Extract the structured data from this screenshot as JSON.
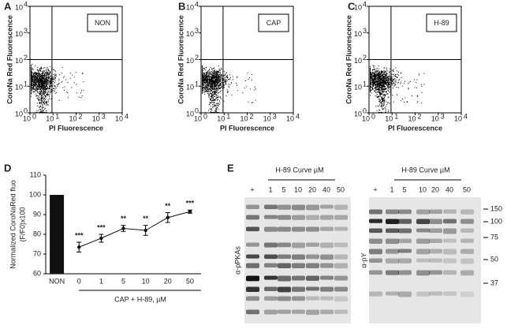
{
  "chart_data": [
    {
      "type": "scatter",
      "letter": "A",
      "label": "NON",
      "x_label": "PI Fluorescence",
      "y_label": "CoroNa Red Fluorescence",
      "log_x": true,
      "log_y": true,
      "xlim": [
        1,
        10000
      ],
      "ylim": [
        1,
        10000
      ],
      "xticks": [
        {
          "value": 1,
          "label": "10",
          "exponent": "0"
        },
        {
          "value": 10,
          "label": "10",
          "exponent": "1"
        },
        {
          "value": 100,
          "label": "10",
          "exponent": "2"
        },
        {
          "value": 1000,
          "label": "10",
          "exponent": "3"
        },
        {
          "value": 10000,
          "label": "10",
          "exponent": "4"
        }
      ],
      "yticks": [
        {
          "value": 1,
          "label": "10",
          "exponent": "0"
        },
        {
          "value": 10,
          "label": "10",
          "exponent": "1"
        },
        {
          "value": 100,
          "label": "10",
          "exponent": "2"
        },
        {
          "value": 1000,
          "label": "10",
          "exponent": "3"
        },
        {
          "value": 10000,
          "label": "10",
          "exponent": "4"
        }
      ],
      "gate": {
        "x": 9,
        "y": 100
      }
    },
    {
      "type": "scatter",
      "letter": "B",
      "label": "CAP",
      "x_label": "PI  Fluorescence",
      "y_label": "CoroNa Red Fluorescence",
      "log_x": true,
      "log_y": true,
      "xlim": [
        1,
        10000
      ],
      "ylim": [
        1,
        10000
      ],
      "xticks": [
        {
          "value": 1,
          "label": "10",
          "exponent": "0"
        },
        {
          "value": 10,
          "label": "10",
          "exponent": "1"
        },
        {
          "value": 100,
          "label": "10",
          "exponent": "2"
        },
        {
          "value": 1000,
          "label": "10",
          "exponent": "3"
        },
        {
          "value": 10000,
          "label": "10",
          "exponent": "4"
        }
      ],
      "yticks": [
        {
          "value": 1,
          "label": "10",
          "exponent": "0"
        },
        {
          "value": 10,
          "label": "10",
          "exponent": "1"
        },
        {
          "value": 100,
          "label": "10",
          "exponent": "2"
        },
        {
          "value": 1000,
          "label": "10",
          "exponent": "3"
        },
        {
          "value": 10000,
          "label": "10",
          "exponent": "4"
        }
      ],
      "gate": {
        "x": 9,
        "y": 100
      }
    },
    {
      "type": "scatter",
      "letter": "C",
      "label": "H-89",
      "x_label": "PI  Fluorescence",
      "y_label": "CoroNa Red Fluorescence",
      "log_x": true,
      "log_y": true,
      "xlim": [
        1,
        10000
      ],
      "ylim": [
        1,
        10000
      ],
      "xticks": [
        {
          "value": 1,
          "label": "10",
          "exponent": "0"
        },
        {
          "value": 10,
          "label": "10",
          "exponent": "1"
        },
        {
          "value": 100,
          "label": "10",
          "exponent": "2"
        },
        {
          "value": 1000,
          "label": "10",
          "exponent": "3"
        },
        {
          "value": 10000,
          "label": "10",
          "exponent": "4"
        }
      ],
      "yticks": [
        {
          "value": 1,
          "label": "10",
          "exponent": "0"
        },
        {
          "value": 10,
          "label": "10",
          "exponent": "1"
        },
        {
          "value": 100,
          "label": "10",
          "exponent": "2"
        },
        {
          "value": 1000,
          "label": "10",
          "exponent": "3"
        },
        {
          "value": 10000,
          "label": "10",
          "exponent": "4"
        }
      ],
      "gate": {
        "x": 9,
        "y": 100
      }
    },
    {
      "type": "combo",
      "letter": "D",
      "y_label": [
        "Normalized CoroNaRed fluo",
        "(F/F0)x100"
      ],
      "x_label": "CAP + H-89, µM",
      "categories": [
        "NON",
        "0",
        "1",
        "5",
        "10",
        "20",
        "50"
      ],
      "ylim": [
        60,
        110
      ],
      "yticks": [
        60,
        70,
        80,
        90,
        100,
        110
      ],
      "series": [
        {
          "kind": "bar",
          "color": "#111111",
          "values": [
            100,
            null,
            null,
            null,
            null,
            null,
            null
          ]
        },
        {
          "kind": "line",
          "color": "#111111",
          "values": [
            null,
            73.5,
            78,
            83,
            82,
            88.5,
            91.5
          ],
          "errors": [
            null,
            2.5,
            2,
            1.5,
            2.5,
            2.5,
            0.8
          ],
          "annotations": [
            null,
            "***",
            "***",
            "**",
            "**",
            "**",
            "***"
          ]
        }
      ]
    }
  ],
  "blots": {
    "letter": "E",
    "panels": [
      {
        "header": "H-89 Curve  µM",
        "lanes": [
          "+",
          "1",
          "5",
          "10",
          "20",
          "40",
          "50"
        ],
        "antibody": "α-pPKAs"
      },
      {
        "header": "H-89 Curve  µM",
        "lanes": [
          "+",
          "1",
          "5",
          "10",
          "20",
          "40",
          "50"
        ],
        "antibody": "α-pY"
      }
    ],
    "markers": [
      "150",
      "100",
      "75",
      "50",
      "37"
    ]
  }
}
